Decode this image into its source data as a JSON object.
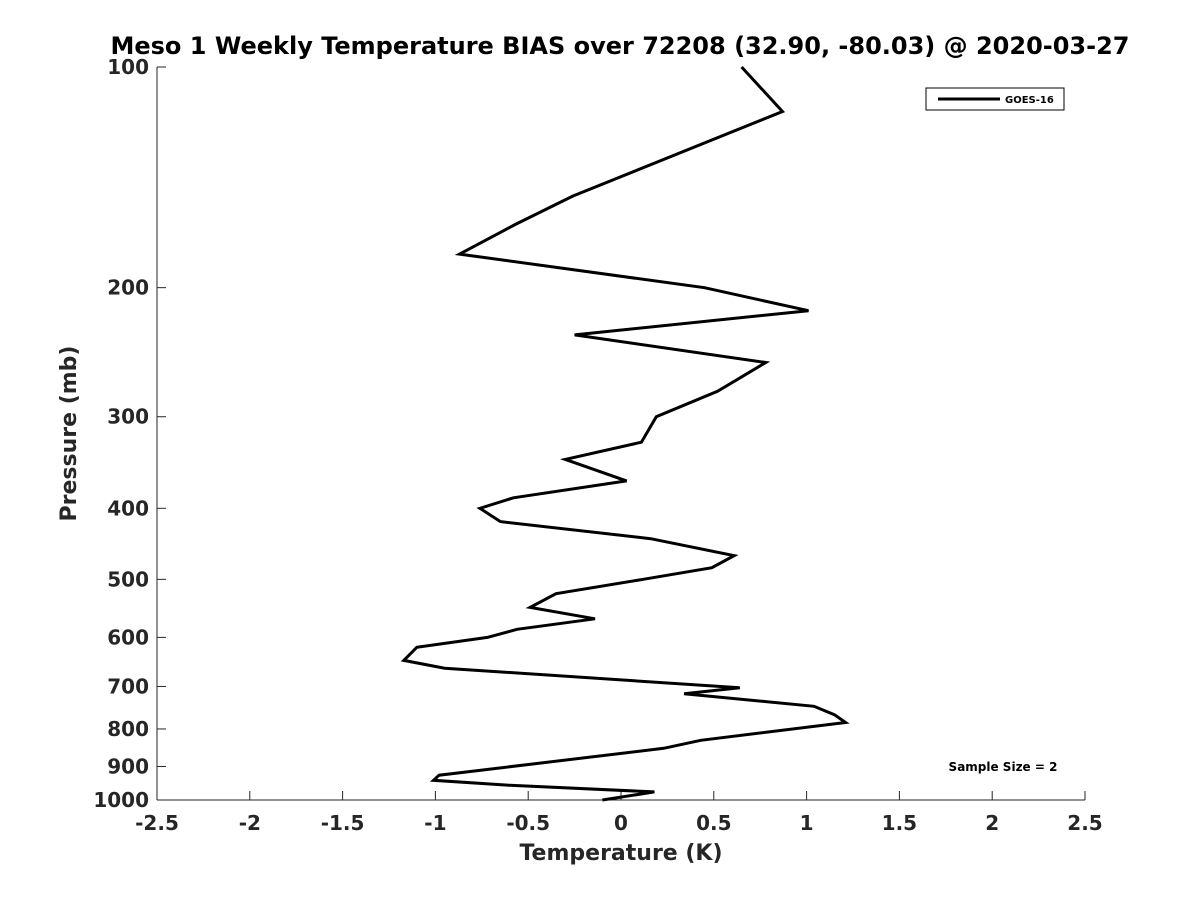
{
  "chart_data": {
    "type": "line",
    "title": "Meso 1 Weekly Temperature BIAS over 72208 (32.90, -80.03) @ 2020-03-27",
    "xlabel": "Temperature (K)",
    "ylabel": "Pressure (mb)",
    "xlim": [
      -2.5,
      2.5
    ],
    "ylim": [
      100,
      1000
    ],
    "y_scale": "log",
    "y_reversed": true,
    "xticks": [
      -2.5,
      -2,
      -1.5,
      -1,
      -0.5,
      0,
      0.5,
      1,
      1.5,
      2,
      2.5
    ],
    "xtick_labels": [
      "-2.5",
      "-2",
      "-1.5",
      "-1",
      "-0.5",
      "0",
      "0.5",
      "1",
      "1.5",
      "2",
      "2.5"
    ],
    "yticks": [
      100,
      200,
      300,
      400,
      500,
      600,
      700,
      800,
      900,
      1000
    ],
    "ytick_labels": [
      "100",
      "200",
      "300",
      "400",
      "500",
      "600",
      "700",
      "800",
      "900",
      "1000"
    ],
    "grid": false,
    "legend_position": "top-right",
    "annotation": "Sample Size = 2",
    "series": [
      {
        "name": "GOES-16",
        "color": "#000000",
        "points": [
          {
            "x": 0.65,
            "p": 100
          },
          {
            "x": 0.87,
            "p": 115
          },
          {
            "x": -0.26,
            "p": 150
          },
          {
            "x": -0.57,
            "p": 164
          },
          {
            "x": -0.87,
            "p": 180
          },
          {
            "x": 0.45,
            "p": 200
          },
          {
            "x": 1.01,
            "p": 215
          },
          {
            "x": -0.25,
            "p": 232
          },
          {
            "x": 0.78,
            "p": 253
          },
          {
            "x": 0.52,
            "p": 277
          },
          {
            "x": 0.19,
            "p": 300
          },
          {
            "x": 0.11,
            "p": 325
          },
          {
            "x": -0.3,
            "p": 343
          },
          {
            "x": 0.03,
            "p": 367
          },
          {
            "x": -0.58,
            "p": 387
          },
          {
            "x": -0.76,
            "p": 400
          },
          {
            "x": -0.65,
            "p": 417
          },
          {
            "x": 0.16,
            "p": 440
          },
          {
            "x": 0.61,
            "p": 464
          },
          {
            "x": 0.49,
            "p": 482
          },
          {
            "x": 0.12,
            "p": 500
          },
          {
            "x": -0.35,
            "p": 523
          },
          {
            "x": -0.49,
            "p": 546
          },
          {
            "x": -0.14,
            "p": 566
          },
          {
            "x": -0.56,
            "p": 585
          },
          {
            "x": -0.72,
            "p": 600
          },
          {
            "x": -1.1,
            "p": 619
          },
          {
            "x": -1.17,
            "p": 645
          },
          {
            "x": -0.95,
            "p": 661
          },
          {
            "x": 0.64,
            "p": 703
          },
          {
            "x": 0.34,
            "p": 716
          },
          {
            "x": 1.04,
            "p": 745
          },
          {
            "x": 1.15,
            "p": 765
          },
          {
            "x": 1.21,
            "p": 784
          },
          {
            "x": 0.43,
            "p": 829
          },
          {
            "x": 0.23,
            "p": 850
          },
          {
            "x": -0.98,
            "p": 925
          },
          {
            "x": -1.01,
            "p": 940
          },
          {
            "x": -0.6,
            "p": 955
          },
          {
            "x": 0.18,
            "p": 975
          },
          {
            "x": -0.1,
            "p": 1000
          }
        ]
      }
    ]
  }
}
